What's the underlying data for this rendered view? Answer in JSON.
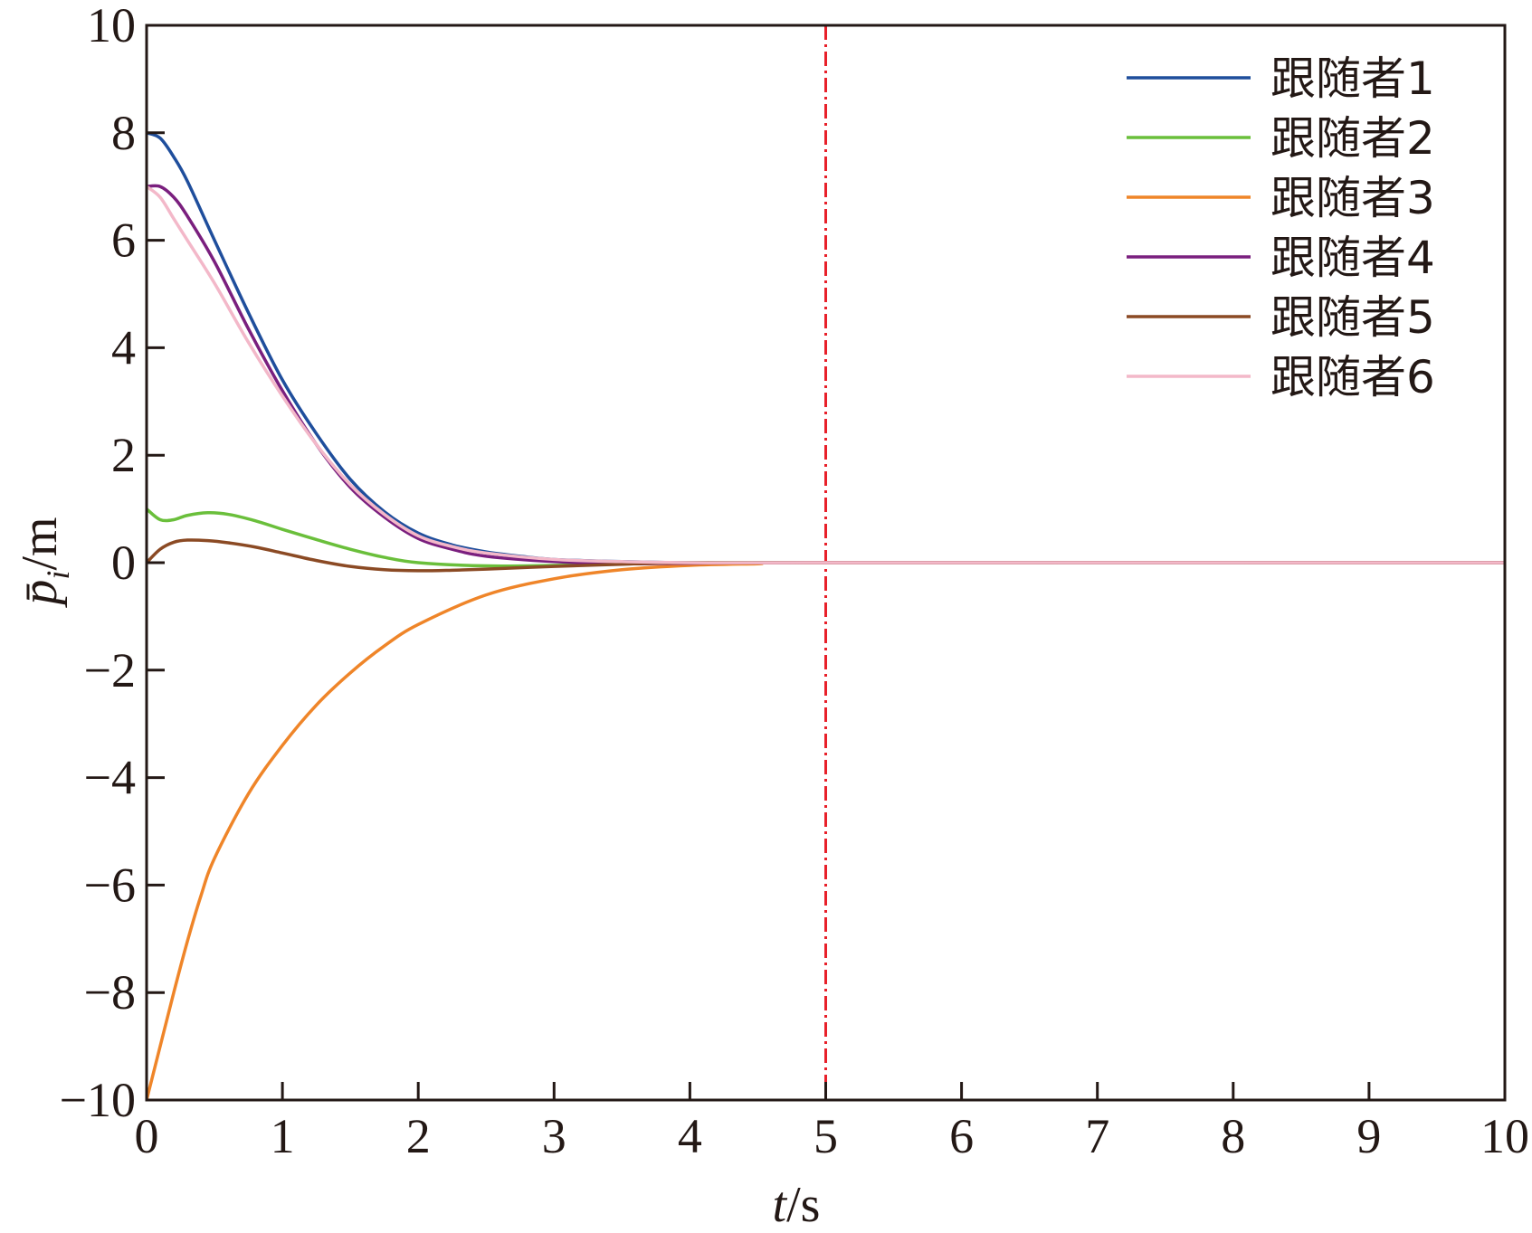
{
  "chart_data": {
    "type": "line",
    "xlabel": {
      "var": "t",
      "unit": "/s"
    },
    "ylabel": {
      "var": "p̄",
      "sub": "i",
      "unit": "/m"
    },
    "xlim": [
      0,
      10
    ],
    "ylim": [
      -10,
      10
    ],
    "xticks": [
      0,
      1,
      2,
      3,
      4,
      5,
      6,
      7,
      8,
      9,
      10
    ],
    "yticks": [
      -10,
      -8,
      -6,
      -4,
      -2,
      0,
      2,
      4,
      6,
      8,
      10
    ],
    "xtick_labels": [
      "0",
      "1",
      "2",
      "3",
      "4",
      "5",
      "6",
      "7",
      "8",
      "9",
      "10"
    ],
    "ytick_labels": [
      "−10",
      "−8",
      "−6",
      "−4",
      "−2",
      "0",
      "2",
      "4",
      "6",
      "8",
      "10"
    ],
    "grid": false,
    "legend_position": "top-right",
    "vline": {
      "x": 5,
      "color": "#e8202a",
      "style": "dash-dot"
    },
    "series": [
      {
        "name": "跟随者1",
        "color": "#1f4e9c",
        "x": [
          0,
          0.1,
          0.2,
          0.3,
          0.5,
          0.75,
          1,
          1.25,
          1.5,
          1.75,
          2,
          2.25,
          2.5,
          2.75,
          3,
          3.5,
          4,
          4.5,
          5,
          10
        ],
        "y": [
          8,
          7.9,
          7.55,
          7.1,
          6.0,
          4.65,
          3.4,
          2.4,
          1.55,
          0.95,
          0.55,
          0.33,
          0.2,
          0.12,
          0.06,
          0.02,
          0.0,
          0.0,
          0,
          0
        ]
      },
      {
        "name": "跟随者2",
        "color": "#6abf3b",
        "x": [
          0,
          0.1,
          0.2,
          0.3,
          0.45,
          0.6,
          0.8,
          1,
          1.25,
          1.5,
          1.75,
          2,
          2.5,
          3,
          3.5,
          4,
          5,
          10
        ],
        "y": [
          1.0,
          0.8,
          0.8,
          0.88,
          0.93,
          0.9,
          0.78,
          0.62,
          0.43,
          0.25,
          0.1,
          0.0,
          -0.06,
          -0.05,
          -0.02,
          0,
          0,
          0
        ]
      },
      {
        "name": "跟随者3",
        "color": "#ef8529",
        "x": [
          0,
          0.1,
          0.2,
          0.3,
          0.4,
          0.5,
          0.75,
          1,
          1.25,
          1.5,
          1.75,
          2,
          2.5,
          3,
          3.5,
          4,
          4.5,
          5,
          10
        ],
        "y": [
          -10,
          -9.0,
          -8.0,
          -7.05,
          -6.2,
          -5.5,
          -4.3,
          -3.4,
          -2.65,
          -2.05,
          -1.55,
          -1.15,
          -0.6,
          -0.3,
          -0.13,
          -0.05,
          -0.02,
          0,
          0
        ]
      },
      {
        "name": "跟随者4",
        "color": "#7a1f7e",
        "x": [
          0,
          0.1,
          0.2,
          0.3,
          0.5,
          0.75,
          1,
          1.25,
          1.5,
          1.75,
          2,
          2.25,
          2.5,
          3,
          3.5,
          4,
          5,
          10
        ],
        "y": [
          7.0,
          7.0,
          6.8,
          6.45,
          5.6,
          4.35,
          3.2,
          2.2,
          1.4,
          0.85,
          0.45,
          0.25,
          0.12,
          0.02,
          -0.02,
          -0.01,
          0,
          0
        ]
      },
      {
        "name": "跟随者5",
        "color": "#8b4a24",
        "x": [
          0,
          0.1,
          0.2,
          0.3,
          0.45,
          0.6,
          0.8,
          1,
          1.25,
          1.5,
          1.75,
          2,
          2.25,
          2.5,
          3,
          3.5,
          4,
          5,
          10
        ],
        "y": [
          0.0,
          0.25,
          0.38,
          0.42,
          0.41,
          0.37,
          0.29,
          0.18,
          0.04,
          -0.07,
          -0.13,
          -0.15,
          -0.14,
          -0.12,
          -0.07,
          -0.03,
          0,
          0,
          0
        ]
      },
      {
        "name": "跟随者6",
        "color": "#f3b8c9",
        "x": [
          0,
          0.1,
          0.2,
          0.3,
          0.5,
          0.75,
          1,
          1.25,
          1.5,
          1.75,
          2,
          2.25,
          2.5,
          3,
          3.5,
          4,
          5,
          10
        ],
        "y": [
          7.0,
          6.8,
          6.4,
          6.0,
          5.2,
          4.1,
          3.1,
          2.2,
          1.45,
          0.9,
          0.5,
          0.3,
          0.18,
          0.06,
          0.02,
          0,
          0,
          0
        ]
      }
    ]
  }
}
